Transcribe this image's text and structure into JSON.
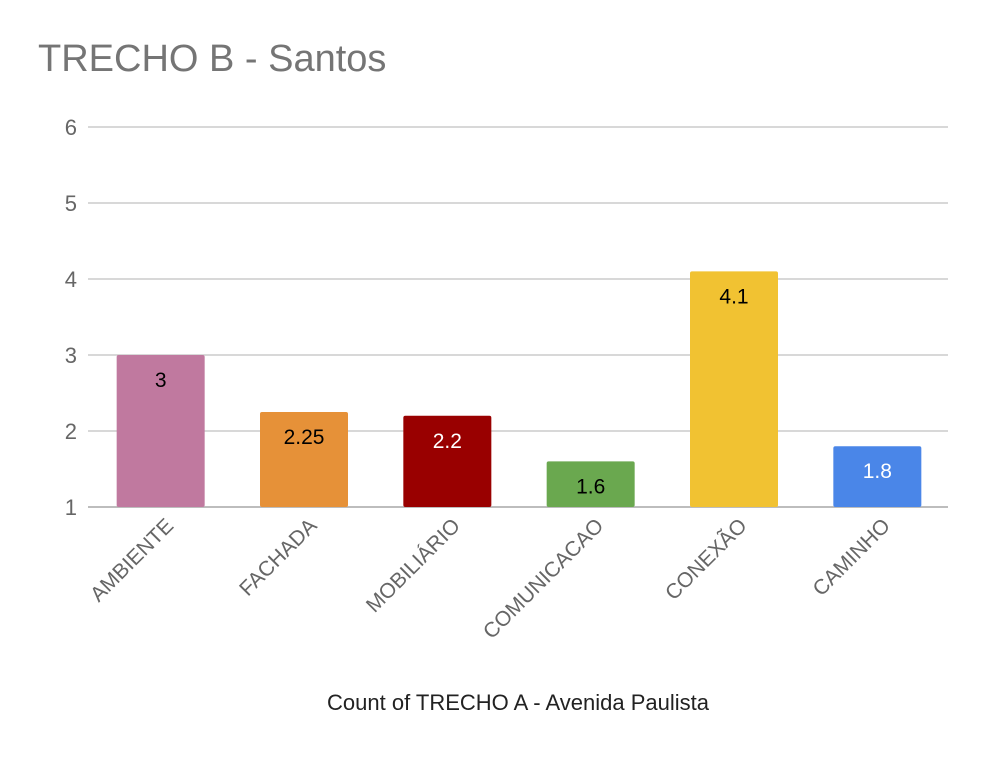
{
  "chart_data": {
    "type": "bar",
    "title": "TRECHO B - Santos",
    "xlabel": "Count of TRECHO A - Avenida Paulista",
    "ylabel": "",
    "ylim": [
      1,
      6
    ],
    "yticks": [
      1,
      2,
      3,
      4,
      5,
      6
    ],
    "grid": true,
    "legend": "none",
    "categories": [
      "AMBIENTE",
      "FACHADA",
      "MOBILIÁRIO",
      "COMUNICACAO",
      "CONEXÃO",
      "CAMINHO"
    ],
    "values": [
      3,
      2.25,
      2.2,
      1.6,
      4.1,
      1.8
    ],
    "data_labels": [
      "3",
      "2.25",
      "2.2",
      "1.6",
      "4.1",
      "1.8"
    ],
    "bar_colors": [
      "#c0799f",
      "#e69138",
      "#990000",
      "#6aa84f",
      "#f1c232",
      "#4a86e8"
    ],
    "label_colors": [
      "#000000",
      "#000000",
      "#ffffff",
      "#000000",
      "#000000",
      "#ffffff"
    ]
  }
}
